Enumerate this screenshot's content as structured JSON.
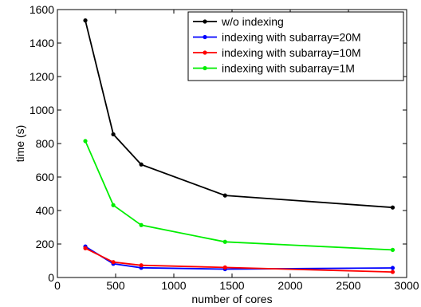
{
  "chart_data": {
    "type": "line",
    "xlabel": "number of cores",
    "ylabel": "time (s)",
    "xlim": [
      0,
      3000
    ],
    "ylim": [
      0,
      1600
    ],
    "x_ticks": [
      0,
      500,
      1000,
      1500,
      2000,
      2500,
      3000
    ],
    "y_ticks": [
      0,
      200,
      400,
      600,
      800,
      1000,
      1200,
      1400,
      1600
    ],
    "x_tick_labels": [
      "0",
      "500",
      "1000",
      "1500",
      "2000",
      "2500",
      "3000"
    ],
    "y_tick_labels": [
      "0",
      "200",
      "400",
      "600",
      "800",
      "1000",
      "1200",
      "1400",
      "1600"
    ],
    "grid": false,
    "legend_position": "top-right",
    "x": [
      240,
      480,
      720,
      1440,
      2880
    ],
    "series": [
      {
        "name": "w/o indexing",
        "color": "#000000",
        "values": [
          1535,
          855,
          675,
          490,
          418
        ]
      },
      {
        "name": "indexing with subarray=20M",
        "color": "#0000ff",
        "values": [
          185,
          82,
          58,
          50,
          57
        ]
      },
      {
        "name": "indexing with subarray=10M",
        "color": "#ff0000",
        "values": [
          175,
          92,
          73,
          60,
          33
        ]
      },
      {
        "name": "indexing with subarray=1M",
        "color": "#00ee00",
        "values": [
          815,
          432,
          313,
          213,
          165
        ]
      }
    ]
  }
}
